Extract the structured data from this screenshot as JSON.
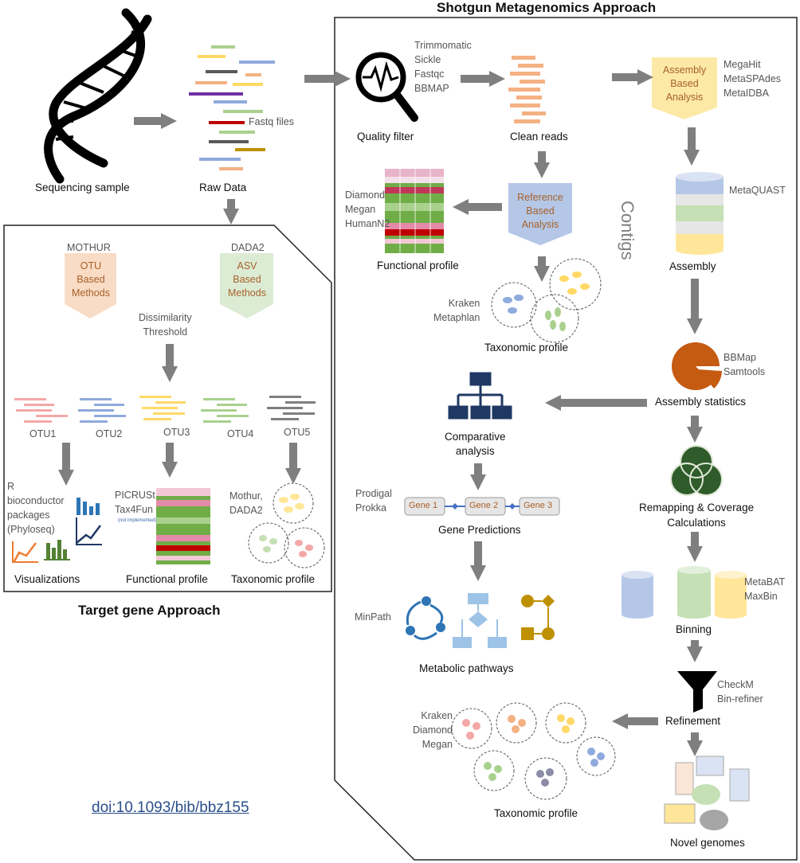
{
  "titles": {
    "shotgun": "Shotgun Metagenomics Approach",
    "target": "Target gene Approach"
  },
  "top": {
    "sequencing_sample": "Sequencing sample",
    "raw_data": "Raw Data",
    "fastq_files": "Fastq files",
    "quality_filter": "Quality filter",
    "qc_tools": [
      "Trimmomatic",
      "Sickle",
      "Fastqc",
      "BBMAP"
    ],
    "clean_reads": "Clean reads",
    "assembly_based": [
      "Assembly",
      "Based",
      "Analysis"
    ],
    "assembly_tools": [
      "MegaHit",
      "MetaSPAdes",
      "MetaIDBA"
    ]
  },
  "shotgun": {
    "reference_based": [
      "Reference",
      "Based",
      "Analysis"
    ],
    "functional_tools": [
      "Diamond",
      "Megan",
      "HumanN2"
    ],
    "functional_profile": "Functional profile",
    "taxo_tools": [
      "Kraken",
      "Metaphlan"
    ],
    "taxonomic_profile": "Taxonomic profile",
    "contigs": "Contigs",
    "metaquast": "MetaQUAST",
    "assembly": "Assembly",
    "stats_tools": [
      "BBMap",
      "Samtools"
    ],
    "assembly_statistics": "Assembly statistics",
    "comparative_analysis": [
      "Comparative",
      "analysis"
    ],
    "remapping": [
      "Remapping & Coverage",
      "Calculations"
    ],
    "gene_tools": [
      "Prodigal",
      "Prokka"
    ],
    "genes": [
      "Gene 1",
      "Gene 2",
      "Gene 3"
    ],
    "gene_predictions": "Gene Predictions",
    "binning_tools": [
      "MetaBAT",
      "MaxBin"
    ],
    "binning": "Binning",
    "minpath": "MinPath",
    "metabolic_pathways": "Metabolic pathways",
    "refine_tools": [
      "CheckM",
      "Bin-refiner"
    ],
    "refinement": "Refinement",
    "final_taxo_tools": [
      "Kraken",
      "Diamond",
      "Megan"
    ],
    "final_taxonomic_profile": "Taxonomic profile",
    "novel_genomes": "Novel genomes"
  },
  "target": {
    "mothur": "MOTHUR",
    "otu_methods": [
      "OTU",
      "Based",
      "Methods"
    ],
    "dada2": "DADA2",
    "asv_methods": [
      "ASV",
      "Based",
      "Methods"
    ],
    "threshold": [
      "Dissimilarity",
      "Threshold"
    ],
    "otus": [
      "OTU1",
      "OTU2",
      "OTU3",
      "OTU4",
      "OTU5"
    ],
    "r_tools": [
      "R",
      "bioconductor",
      "packages",
      "(Phyloseq)"
    ],
    "visualizations": "Visualizations",
    "picrust_tools": [
      "PICRUSt",
      "Tax4Fun"
    ],
    "not_implemented": "(not implemented)",
    "functional_profile": "Functional profile",
    "mothur_tools": [
      "Mothur,",
      "DADA2"
    ],
    "taxonomic_profile": "Taxonomic profile"
  },
  "doi": "doi:10.1093/bib/bbz155",
  "colors": {
    "arrow": "#7f7f7f",
    "pentagon_orange": "#f9dcc5",
    "pentagon_green": "#dcecd4",
    "pentagon_yellow": "#fde9a6",
    "pentagon_blue": "#b4c7e7",
    "pie": "#c55a11",
    "venn": "#2f5c2a",
    "hierarchy": "#1f3864",
    "link": "#2a4e8a"
  }
}
